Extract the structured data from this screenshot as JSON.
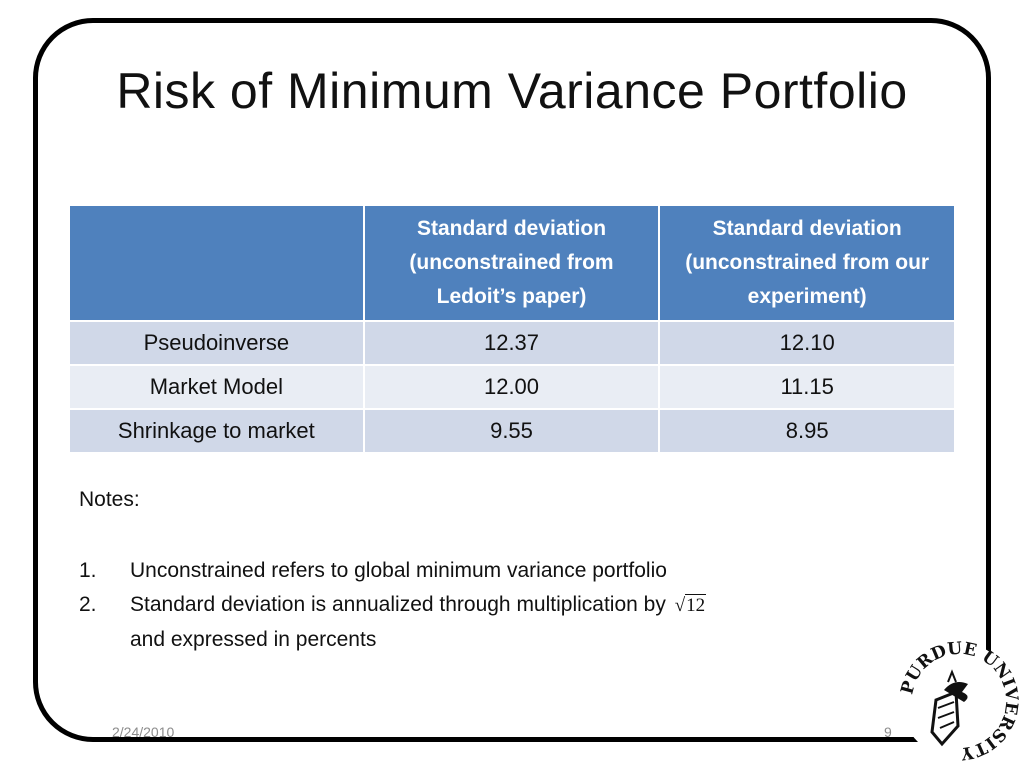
{
  "slide": {
    "title": "Risk of Minimum Variance Portfolio",
    "date": "2/24/2010",
    "page_number": "9"
  },
  "table": {
    "headers": [
      "",
      "Standard deviation (unconstrained  from Ledoit’s paper)",
      "Standard deviation (unconstrained from our experiment)"
    ],
    "rows": [
      {
        "label": "Pseudoinverse",
        "ledoit": "12.37",
        "experiment": "12.10"
      },
      {
        "label": "Market Model",
        "ledoit": "12.00",
        "experiment": "11.15"
      },
      {
        "label": "Shrinkage to market",
        "ledoit": "9.55",
        "experiment": "8.95"
      }
    ]
  },
  "notes": {
    "heading": "Notes:",
    "items": [
      {
        "number": "1.",
        "text": "Unconstrained refers to global minimum variance portfolio"
      },
      {
        "number": "2.",
        "text": "Standard deviation is annualized through multiplication by",
        "formula_radicand": "12",
        "text_cont": "and expressed in percents"
      }
    ]
  },
  "logo": {
    "icon": "purdue-university-seal-icon",
    "text": "PURDUE UNIVERSITY"
  }
}
